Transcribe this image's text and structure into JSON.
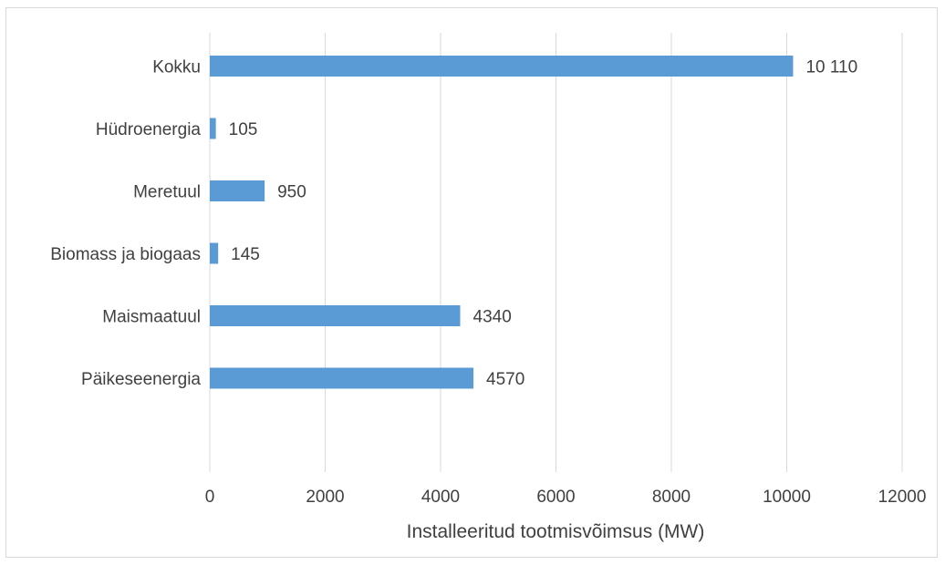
{
  "chart_data": {
    "type": "bar",
    "orientation": "horizontal",
    "title": "",
    "xlabel": "Installeeritud tootmisvõimsus (MW)",
    "ylabel": "",
    "categories": [
      "Kokku",
      "Hüdroenergia",
      "Meretuul",
      "Biomass ja biogaas",
      "Maismaatuul",
      "Päikeseenergia"
    ],
    "values": [
      10110,
      105,
      950,
      145,
      4340,
      4570
    ],
    "data_labels": [
      "10 110",
      "105",
      "950",
      "145",
      "4340",
      "4570"
    ],
    "xlim": [
      0,
      12000
    ],
    "x_ticks": [
      0,
      2000,
      4000,
      6000,
      8000,
      10000,
      12000
    ],
    "x_tick_labels": [
      "0",
      "2000",
      "4000",
      "6000",
      "8000",
      "10000",
      "12000"
    ],
    "grid": "vertical",
    "legend": "none",
    "bar_color": "#5b9bd5"
  }
}
